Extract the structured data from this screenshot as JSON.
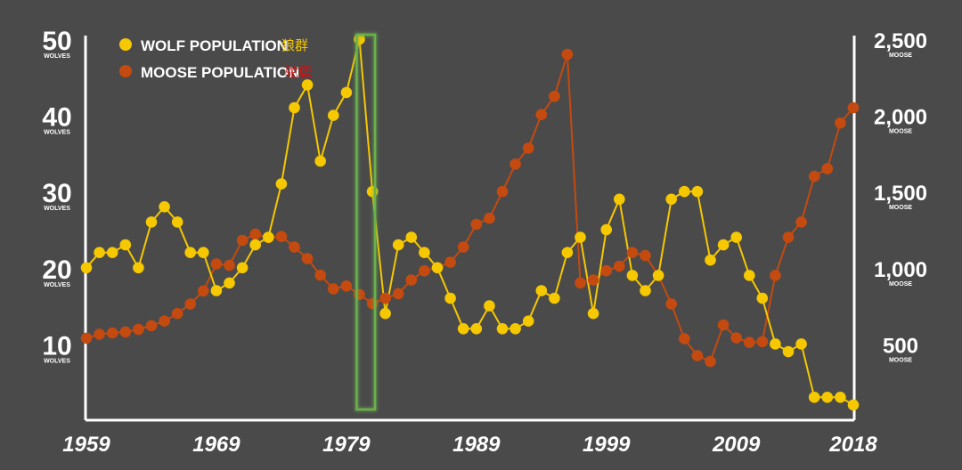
{
  "chart_data": {
    "type": "line",
    "x": [
      1959,
      1960,
      1961,
      1962,
      1963,
      1964,
      1965,
      1966,
      1967,
      1968,
      1969,
      1970,
      1971,
      1972,
      1973,
      1974,
      1975,
      1976,
      1977,
      1978,
      1979,
      1980,
      1981,
      1982,
      1983,
      1984,
      1985,
      1986,
      1987,
      1988,
      1989,
      1990,
      1991,
      1992,
      1993,
      1994,
      1995,
      1996,
      1997,
      1998,
      1999,
      2000,
      2001,
      2002,
      2003,
      2004,
      2005,
      2006,
      2007,
      2008,
      2009,
      2010,
      2011,
      2012,
      2013,
      2014,
      2015,
      2016,
      2017,
      2018
    ],
    "x_ticks": [
      "1959",
      "1969",
      "1979",
      "1989",
      "1999",
      "2009",
      "2018"
    ],
    "series": [
      {
        "name": "WOLF POPULATION",
        "name_cn": "狼群",
        "axis": "left",
        "color": "#f5c800",
        "values": [
          20,
          22,
          22,
          23,
          20,
          26,
          28,
          26,
          22,
          22,
          17,
          18,
          20,
          23,
          24,
          31,
          41,
          44,
          34,
          40,
          43,
          50,
          30,
          14,
          23,
          24,
          22,
          20,
          16,
          12,
          12,
          15,
          12,
          12,
          13,
          17,
          16,
          22,
          24,
          14,
          25,
          29,
          19,
          17,
          19,
          29,
          30,
          30,
          21,
          23,
          24,
          19,
          16,
          10,
          9,
          10,
          3,
          3,
          3,
          2
        ]
      },
      {
        "name": "MOOSE POPULATION",
        "name_cn": "驼鹿",
        "axis": "right",
        "color": "#c44a10",
        "values": [
          538,
          564,
          572,
          579,
          596,
          620,
          650,
          700,
          762,
          848,
          1025,
          1016,
          1180,
          1220,
          1198,
          1205,
          1136,
          1060,
          951,
          861,
          880,
          825,
          765,
          800,
          830,
          920,
          980,
          1000,
          1036,
          1136,
          1285,
          1325,
          1500,
          1680,
          1785,
          2005,
          2125,
          2400,
          900,
          920,
          980,
          1010,
          1100,
          1080,
          950,
          763,
          534,
          423,
          385,
          625,
          540,
          510,
          515,
          950,
          1200,
          1300,
          1600,
          1650,
          1950,
          2050
        ]
      }
    ],
    "left_axis": {
      "ticks": [
        "50",
        "40",
        "30",
        "20",
        "10"
      ],
      "unit": "WOLVES",
      "ylim": [
        0,
        50
      ]
    },
    "right_axis": {
      "ticks": [
        "2,500",
        "2,000",
        "1,500",
        "1,000",
        "500"
      ],
      "unit": "MOOSE",
      "ylim": [
        0,
        2500
      ]
    },
    "highlight": {
      "x_range": [
        1980,
        1981
      ],
      "color": "#6ab04c"
    },
    "grid": false,
    "legend_position": "top-left"
  }
}
